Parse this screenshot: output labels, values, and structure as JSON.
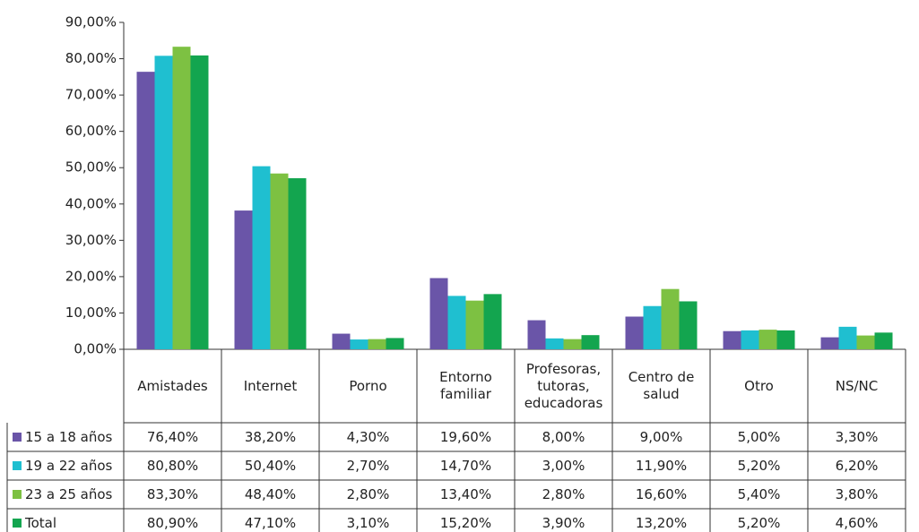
{
  "chart_data": {
    "type": "bar",
    "categories": [
      "Amistades",
      "Internet",
      "Porno",
      "Entorno familiar",
      "Profesoras, tutoras, educadoras",
      "Centro de salud",
      "Otro",
      "NS/NC"
    ],
    "series": [
      {
        "name": "15 a 18 años",
        "color": "#6a55a8",
        "values": [
          76.4,
          38.2,
          4.3,
          19.6,
          8.0,
          9.0,
          5.0,
          3.3
        ],
        "value_labels": [
          "76,40%",
          "38,20%",
          "4,30%",
          "19,60%",
          "8,00%",
          "9,00%",
          "5,00%",
          "3,30%"
        ]
      },
      {
        "name": "19 a 22 años",
        "color": "#1fbfd0",
        "values": [
          80.8,
          50.4,
          2.7,
          14.7,
          3.0,
          11.9,
          5.2,
          6.2
        ],
        "value_labels": [
          "80,80%",
          "50,40%",
          "2,70%",
          "14,70%",
          "3,00%",
          "11,90%",
          "5,20%",
          "6,20%"
        ]
      },
      {
        "name": "23 a 25 años",
        "color": "#7dc142",
        "values": [
          83.3,
          48.4,
          2.8,
          13.4,
          2.8,
          16.6,
          5.4,
          3.8
        ],
        "value_labels": [
          "83,30%",
          "48,40%",
          "2,80%",
          "13,40%",
          "2,80%",
          "16,60%",
          "5,40%",
          "3,80%"
        ]
      },
      {
        "name": "Total",
        "color": "#13a54f",
        "values": [
          80.9,
          47.1,
          3.1,
          15.2,
          3.9,
          13.2,
          5.2,
          4.6
        ],
        "value_labels": [
          "80,90%",
          "47,10%",
          "3,10%",
          "15,20%",
          "3,90%",
          "13,20%",
          "5,20%",
          "4,60%"
        ]
      }
    ],
    "ylim": [
      0,
      90
    ],
    "yticks": [
      {
        "value": 0,
        "label": "0,00%"
      },
      {
        "value": 10,
        "label": "10,00%"
      },
      {
        "value": 20,
        "label": "20,00%"
      },
      {
        "value": 30,
        "label": "30,00%"
      },
      {
        "value": 40,
        "label": "40,00%"
      },
      {
        "value": 50,
        "label": "50,00%"
      },
      {
        "value": 60,
        "label": "60,00%"
      },
      {
        "value": 70,
        "label": "70,00%"
      },
      {
        "value": 80,
        "label": "80,00%"
      },
      {
        "value": 90,
        "label": "90,00%"
      }
    ],
    "grid": false,
    "legend": "table"
  }
}
